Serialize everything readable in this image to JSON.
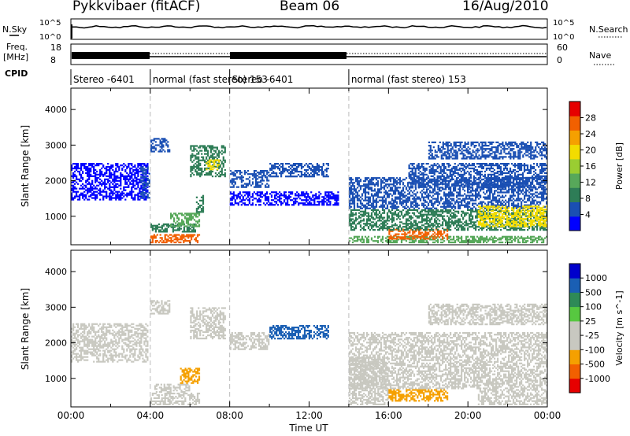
{
  "header": {
    "title": "Pykkvibaer (fitACF)",
    "beam": "Beam 06",
    "date": "16/Aug/2010"
  },
  "status_panels": {
    "nsky_label": "N.Sky",
    "nsky_ticks": [
      "10^5",
      "10^0"
    ],
    "nsearch_label": "N.Search",
    "freq_label_1": "Freq.",
    "freq_label_2": "[MHz]",
    "freq_ticks": [
      "18",
      "8"
    ],
    "nave_label": "Nave",
    "nave_ticks": [
      "60",
      "0"
    ],
    "cpid_label": "CPID",
    "cpid_segments": [
      {
        "label": "Stereo -6401",
        "start": 0,
        "end": 4
      },
      {
        "label": "normal (fast stereo) 153",
        "start": 4,
        "end": 8
      },
      {
        "label": "Stereo -6401",
        "start": 8,
        "end": 14
      },
      {
        "label": "normal (fast stereo) 153",
        "start": 14,
        "end": 24
      }
    ]
  },
  "chart_data": [
    {
      "type": "heatmap",
      "name": "power",
      "xlabel": "Time UT",
      "ylabel": "Slant Range [km]",
      "xlim": [
        0,
        24
      ],
      "ylim": [
        200,
        4600
      ],
      "xticks": [
        "00:00",
        "04:00",
        "08:00",
        "12:00",
        "16:00",
        "20:00",
        "00:00"
      ],
      "yticks": [
        1000,
        2000,
        3000,
        4000
      ],
      "colorbar": {
        "label": "Power [dB]",
        "ticks": [
          "28",
          "24",
          "20",
          "16",
          "12",
          "8",
          "4"
        ],
        "colors": [
          "#0000ff",
          "#1a4fb3",
          "#2e7d57",
          "#57a85a",
          "#9acd32",
          "#f2dc00",
          "#f5a000",
          "#f26000",
          "#e60000"
        ]
      },
      "regions": [
        {
          "t0": 0.0,
          "t1": 3.9,
          "r0": 1450,
          "r1": 2500,
          "value": 5
        },
        {
          "t0": 3.5,
          "t1": 4.0,
          "r0": 1500,
          "r1": 2400,
          "value": 8
        },
        {
          "t0": 4.0,
          "t1": 6.5,
          "r0": 250,
          "r1": 500,
          "value": 24
        },
        {
          "t0": 4.0,
          "t1": 6.3,
          "r0": 550,
          "r1": 800,
          "value": 10
        },
        {
          "t0": 5.0,
          "t1": 6.5,
          "r0": 700,
          "r1": 1100,
          "value": 14
        },
        {
          "t0": 6.3,
          "t1": 6.7,
          "r0": 1100,
          "r1": 1600,
          "value": 9
        },
        {
          "t0": 4.0,
          "t1": 5.0,
          "r0": 2800,
          "r1": 3200,
          "value": 7
        },
        {
          "t0": 6.0,
          "t1": 7.8,
          "r0": 2100,
          "r1": 3000,
          "value": 11
        },
        {
          "t0": 6.8,
          "t1": 7.5,
          "r0": 2300,
          "r1": 2600,
          "value": 20
        },
        {
          "t0": 8.0,
          "t1": 10.0,
          "r0": 1800,
          "r1": 2300,
          "value": 8
        },
        {
          "t0": 10.0,
          "t1": 13.0,
          "r0": 2100,
          "r1": 2500,
          "value": 6
        },
        {
          "t0": 8.0,
          "t1": 13.5,
          "r0": 1300,
          "r1": 1700,
          "value": 4
        },
        {
          "t0": 14.0,
          "t1": 24.0,
          "r0": 250,
          "r1": 450,
          "value": 14
        },
        {
          "t0": 16.0,
          "t1": 19.0,
          "r0": 350,
          "r1": 650,
          "value": 26
        },
        {
          "t0": 14.0,
          "t1": 24.0,
          "r0": 600,
          "r1": 1200,
          "value": 10
        },
        {
          "t0": 14.0,
          "t1": 24.0,
          "r0": 1200,
          "r1": 2100,
          "value": 7
        },
        {
          "t0": 17.0,
          "t1": 24.0,
          "r0": 1800,
          "r1": 2500,
          "value": 8
        },
        {
          "t0": 18.0,
          "t1": 24.0,
          "r0": 2600,
          "r1": 3100,
          "value": 6
        },
        {
          "t0": 20.5,
          "t1": 24.0,
          "r0": 700,
          "r1": 1300,
          "value": 18
        }
      ]
    },
    {
      "type": "heatmap",
      "name": "velocity",
      "xlabel": "Time UT",
      "ylabel": "Slant Range [km]",
      "xlim": [
        0,
        24
      ],
      "ylim": [
        200,
        4600
      ],
      "xticks": [
        "00:00",
        "04:00",
        "08:00",
        "12:00",
        "16:00",
        "20:00",
        "00:00"
      ],
      "yticks": [
        1000,
        2000,
        3000,
        4000
      ],
      "colorbar": {
        "label": "Velocity [m s^-1]",
        "ticks": [
          "1000",
          "500",
          "100",
          "25",
          "-25",
          "-100",
          "-500",
          "-1000"
        ],
        "colors": [
          "#e60000",
          "#f26000",
          "#f5a000",
          "#c8c8c0",
          "#c8c8c0",
          "#57c840",
          "#2e8a57",
          "#1a5fb4",
          "#0000cc"
        ]
      },
      "regions": [
        {
          "t0": 0.0,
          "t1": 3.9,
          "r0": 1450,
          "r1": 2550,
          "value": -150
        },
        {
          "t0": 4.0,
          "t1": 6.5,
          "r0": 250,
          "r1": 600,
          "value": -300
        },
        {
          "t0": 4.2,
          "t1": 6.0,
          "r0": 600,
          "r1": 850,
          "value": 0
        },
        {
          "t0": 5.5,
          "t1": 6.5,
          "r0": 850,
          "r1": 1300,
          "value": -400
        },
        {
          "t0": 4.0,
          "t1": 5.0,
          "r0": 2800,
          "r1": 3200,
          "value": 0
        },
        {
          "t0": 6.0,
          "t1": 7.8,
          "r0": 2100,
          "r1": 3000,
          "value": 0
        },
        {
          "t0": 8.0,
          "t1": 10.0,
          "r0": 1800,
          "r1": 2300,
          "value": 10
        },
        {
          "t0": 10.0,
          "t1": 13.0,
          "r0": 2100,
          "r1": 2500,
          "value": 600
        },
        {
          "t0": 14.0,
          "t1": 16.0,
          "r0": 250,
          "r1": 1600,
          "value": 50
        },
        {
          "t0": 16.0,
          "t1": 19.0,
          "r0": 350,
          "r1": 700,
          "value": -400
        },
        {
          "t0": 14.0,
          "t1": 24.0,
          "r0": 700,
          "r1": 1400,
          "value": 60
        },
        {
          "t0": 14.0,
          "t1": 24.0,
          "r0": 1400,
          "r1": 2300,
          "value": 0
        },
        {
          "t0": 18.0,
          "t1": 24.0,
          "r0": 2500,
          "r1": 3100,
          "value": 0
        },
        {
          "t0": 20.5,
          "t1": 24.0,
          "r0": 250,
          "r1": 700,
          "value": 0
        }
      ]
    }
  ]
}
